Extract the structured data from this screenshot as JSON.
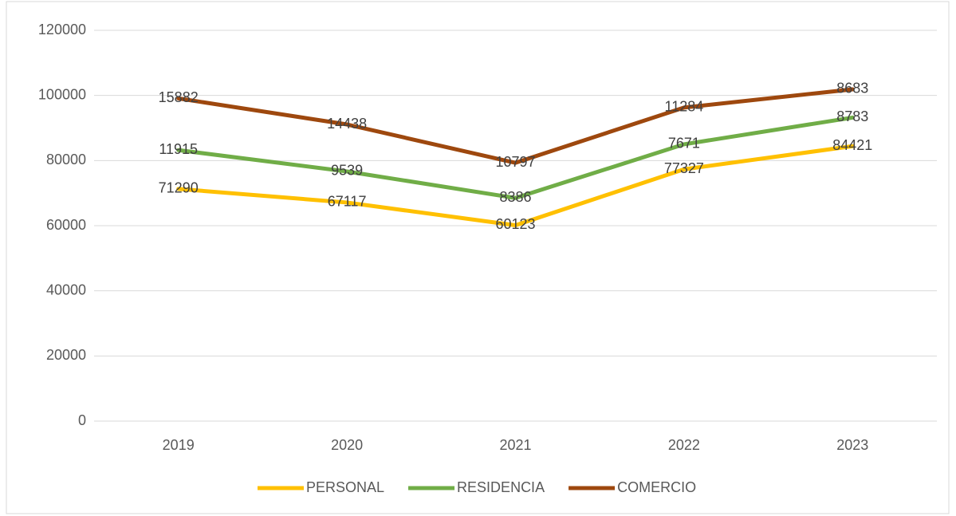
{
  "chart_data": {
    "type": "line",
    "stacked": true,
    "categories": [
      "2019",
      "2020",
      "2021",
      "2022",
      "2023"
    ],
    "series": [
      {
        "name": "PERSONAL",
        "color": "#FFC000",
        "values": [
          71290,
          67117,
          60123,
          77327,
          84421
        ]
      },
      {
        "name": "RESIDENCIA",
        "color": "#70AD47",
        "values": [
          11915,
          9539,
          8386,
          7671,
          8783
        ]
      },
      {
        "name": "COMERCIO",
        "color": "#9E480E",
        "values": [
          15882,
          14438,
          10797,
          11284,
          8683
        ]
      }
    ],
    "ylim": [
      0,
      120000
    ],
    "yticks": [
      0,
      20000,
      40000,
      60000,
      80000,
      100000,
      120000
    ],
    "grid": true,
    "legend": "bottom"
  }
}
